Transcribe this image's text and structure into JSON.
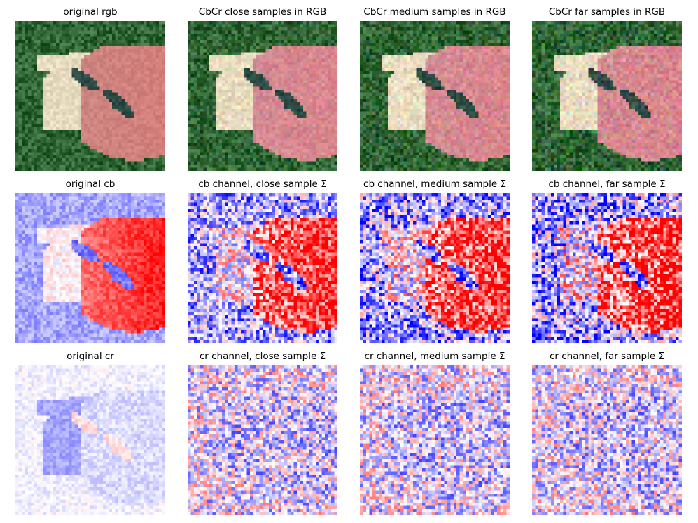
{
  "panels": [
    {
      "title": "original rgb",
      "kind": "rgb",
      "variant": 0
    },
    {
      "title": "CbCr close samples in RGB",
      "kind": "rgb",
      "variant": 1
    },
    {
      "title": "CbCr medium samples in RGB",
      "kind": "rgb",
      "variant": 2
    },
    {
      "title": "CbCr far samples in RGB",
      "kind": "rgb",
      "variant": 3
    },
    {
      "title": "original cb",
      "kind": "cb",
      "variant": 0
    },
    {
      "title": "cb channel, close sample Σ",
      "kind": "cb",
      "variant": 1
    },
    {
      "title": "cb channel, medium sample Σ",
      "kind": "cb",
      "variant": 2
    },
    {
      "title": "cb channel, far sample Σ",
      "kind": "cb",
      "variant": 3
    },
    {
      "title": "original cr",
      "kind": "cr",
      "variant": 0
    },
    {
      "title": "cr channel, close sample Σ",
      "kind": "cr",
      "variant": 1
    },
    {
      "title": "cr channel, medium sample Σ",
      "kind": "cr",
      "variant": 2
    },
    {
      "title": "cr channel, far sample Σ",
      "kind": "cr",
      "variant": 3
    }
  ],
  "colors": {
    "grass": "#2f5a34",
    "wing": "#e8dcc0",
    "body": "#c98a86",
    "hull_dark": "#2d4a44",
    "cmap_low": "#0000ff",
    "cmap_mid": "#ffffff",
    "cmap_high": "#ff0000"
  }
}
